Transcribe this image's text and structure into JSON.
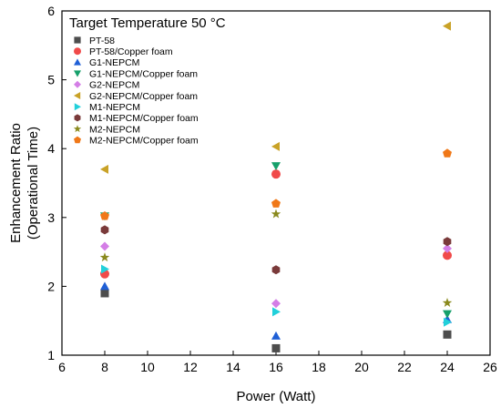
{
  "chart_data": {
    "type": "scatter",
    "title": "Target Temperature 50 °C",
    "xlabel": "Power (Watt)",
    "ylabel_lines": [
      "Enhancement Ratio",
      "(Operational Time)"
    ],
    "xlim": [
      6,
      26
    ],
    "ylim": [
      1,
      6
    ],
    "xticks": [
      6,
      8,
      10,
      12,
      14,
      16,
      18,
      20,
      22,
      24,
      26
    ],
    "yticks": [
      1,
      2,
      3,
      4,
      5,
      6
    ],
    "grid": false,
    "legend_position": "top-left",
    "series": [
      {
        "name": "PT-58",
        "marker": "square",
        "color": "#4d4d4d",
        "x": [
          8,
          16,
          24
        ],
        "y": [
          1.9,
          1.1,
          1.3
        ]
      },
      {
        "name": "PT-58/Copper foam",
        "marker": "circle",
        "color": "#f04a4a",
        "x": [
          8,
          16,
          24
        ],
        "y": [
          2.18,
          3.63,
          2.45
        ]
      },
      {
        "name": "G1-NEPCM",
        "marker": "triangle-up",
        "color": "#1f5fd6",
        "x": [
          8,
          16,
          24
        ],
        "y": [
          2.0,
          1.28,
          1.52
        ]
      },
      {
        "name": "G1-NEPCM/Copper foam",
        "marker": "triangle-down",
        "color": "#16a06b",
        "x": [
          8,
          16,
          24
        ],
        "y": [
          3.02,
          3.75,
          1.6
        ]
      },
      {
        "name": "G2-NEPCM",
        "marker": "diamond",
        "color": "#d47ee6",
        "x": [
          8,
          16,
          24
        ],
        "y": [
          2.58,
          1.75,
          2.55
        ]
      },
      {
        "name": "G2-NEPCM/Copper foam",
        "marker": "triangle-left",
        "color": "#c9a227",
        "x": [
          8,
          16,
          24
        ],
        "y": [
          3.7,
          4.03,
          5.78
        ]
      },
      {
        "name": "M1-NEPCM",
        "marker": "triangle-right",
        "color": "#22d0da",
        "x": [
          8,
          16,
          24
        ],
        "y": [
          2.25,
          1.63,
          1.48
        ]
      },
      {
        "name": "M1-NEPCM/Copper foam",
        "marker": "hexagon",
        "color": "#7a3a3a",
        "x": [
          8,
          16,
          24
        ],
        "y": [
          2.82,
          2.24,
          2.65
        ]
      },
      {
        "name": "M2-NEPCM",
        "marker": "star",
        "color": "#8a8a1e",
        "x": [
          8,
          16,
          24
        ],
        "y": [
          2.42,
          3.05,
          1.76
        ]
      },
      {
        "name": "M2-NEPCM/Copper foam",
        "marker": "pentagon",
        "color": "#f07818",
        "x": [
          8,
          16,
          24
        ],
        "y": [
          3.02,
          3.2,
          3.93
        ]
      }
    ]
  }
}
